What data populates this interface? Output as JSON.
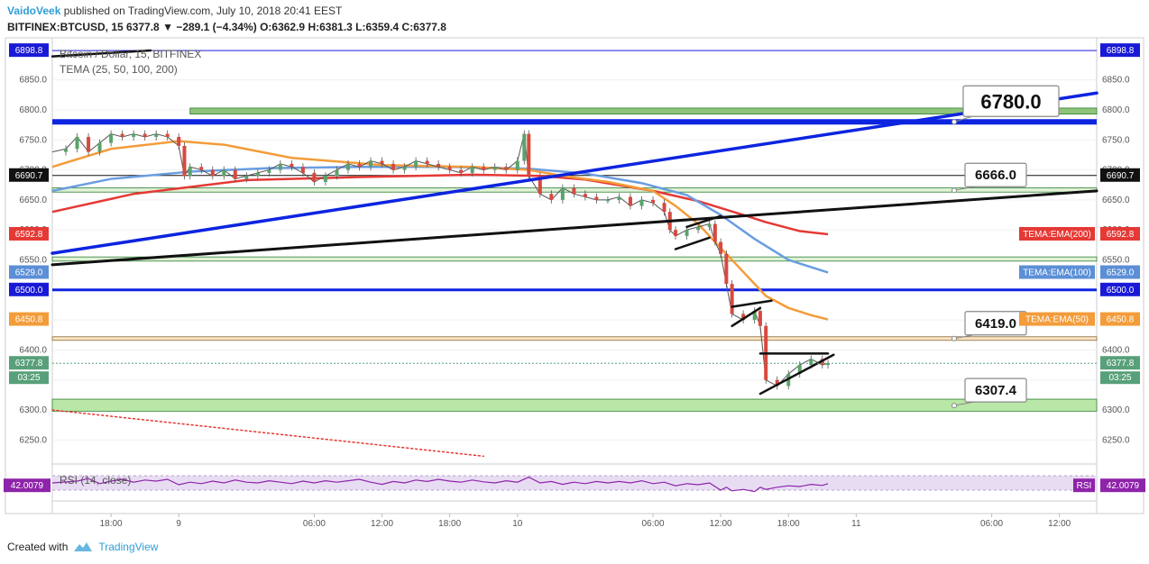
{
  "header": {
    "author": "VaidoVeek",
    "published": "published on TradingView.com, July 10, 2018 20:41 EEST",
    "symbol": "BITFINEX:BTCUSD, 15",
    "last": "6377.8",
    "change_arrow": "▼",
    "change": "−289.1 (−4.34%)",
    "o_label": "O:",
    "o": "6362.9",
    "h_label": "H:",
    "h": "6381.3",
    "l_label": "L:",
    "l": "6359.4",
    "c_label": "C:",
    "c": "6377.8"
  },
  "footer": {
    "created_with": "Created with",
    "brand": "TradingView"
  },
  "chart_data": {
    "type": "line",
    "title": "Bitcoin / Dollar, 15, BITFINEX",
    "indicator_label": "TEMA (25, 50, 100, 200)",
    "rsi_label": "RSI (14, close)",
    "rsi_value": "42.0079",
    "rsi_badge": "RSI",
    "ylim": [
      6210,
      6920
    ],
    "y_ticks": [
      "6850.0",
      "6800.0",
      "6750.0",
      "6700.0",
      "6650.0",
      "6600.0",
      "6550.0",
      "6500.0",
      "6450.0",
      "6400.0",
      "6350.0",
      "6300.0",
      "6250.0"
    ],
    "x_ticks": [
      {
        "label": "18:00",
        "t": 8
      },
      {
        "label": "9",
        "t": 14
      },
      {
        "label": "06:00",
        "t": 26
      },
      {
        "label": "12:00",
        "t": 32
      },
      {
        "label": "18:00",
        "t": 38
      },
      {
        "label": "10",
        "t": 44
      },
      {
        "label": "06:00",
        "t": 56
      },
      {
        "label": "12:00",
        "t": 62
      },
      {
        "label": "18:00",
        "t": 68
      },
      {
        "label": "11",
        "t": 74
      },
      {
        "label": "06:00",
        "t": 86
      },
      {
        "label": "12:00",
        "t": 92
      }
    ],
    "t_range": [
      2.8,
      95.3
    ],
    "price_labels": {
      "left": [
        {
          "value": 6898.8,
          "text": "6898.8",
          "color": "#1a1ad6"
        },
        {
          "value": 6690.7,
          "text": "6690.7",
          "color": "#111111"
        },
        {
          "value": 6592.8,
          "text": "6592.8",
          "color": "#e53935"
        },
        {
          "value": 6529.0,
          "text": "6529.0",
          "color": "#5b8fd6"
        },
        {
          "value": 6500.0,
          "text": "6500.0",
          "color": "#1a1ad6"
        },
        {
          "value": 6450.8,
          "text": "6450.8",
          "color": "#f39c3a"
        },
        {
          "value": 6377.8,
          "text": "6377.8",
          "color": "#58a07a"
        }
      ],
      "timer": "03:25",
      "ema_badges": [
        {
          "value": 6592.8,
          "text": "TEMA:EMA(200)",
          "color": "#e53935"
        },
        {
          "value": 6529.0,
          "text": "TEMA:EMA(100)",
          "color": "#5b8fd6"
        },
        {
          "value": 6450.8,
          "text": "TEMA:EMA(50)",
          "color": "#f39c3a"
        }
      ]
    },
    "levels": [
      {
        "name": "level-6898",
        "value": 6898.8,
        "color": "#1a1ad6",
        "kind": "thin"
      },
      {
        "name": "level-6780",
        "value": 6780.0,
        "color": "#0d24e0",
        "kind": "thick"
      },
      {
        "name": "level-6690",
        "value": 6690.7,
        "color": "#111111",
        "kind": "thin"
      },
      {
        "name": "level-6500",
        "value": 6500.0,
        "color": "#0d24e0",
        "kind": "medium"
      }
    ],
    "zones": [
      {
        "name": "zone-6800",
        "from": 6793,
        "to": 6803,
        "t0": 15.0,
        "fill": "#8fc47a",
        "stroke": "#2e7d32"
      },
      {
        "name": "zone-6666",
        "from": 6663,
        "to": 6670,
        "t0": 2.8,
        "fill": "#dff2d6",
        "stroke": "#2e7d32"
      },
      {
        "name": "zone-6550",
        "from": 6548,
        "to": 6555,
        "t0": 2.8,
        "fill": "#dff2d6",
        "stroke": "#2e7d32"
      },
      {
        "name": "zone-6419",
        "from": 6416,
        "to": 6422,
        "t0": 2.8,
        "fill": "#fbe3c4",
        "stroke": "#8a6d3b"
      },
      {
        "name": "zone-6307",
        "from": 6298,
        "to": 6318,
        "t0": 2.8,
        "fill": "#b9e7a7",
        "stroke": "#2e7d32"
      }
    ],
    "callouts": [
      {
        "text": "6780.0",
        "value": 6780,
        "size": "big"
      },
      {
        "text": "6666.0",
        "value": 6666,
        "size": "small"
      },
      {
        "text": "6419.0",
        "value": 6419,
        "size": "small"
      },
      {
        "text": "6307.4",
        "value": 6307.4,
        "size": "small"
      }
    ],
    "trendlines": [
      {
        "name": "blue-trendline",
        "color": "#0d24e0",
        "width": 3.5,
        "p1": [
          2.8,
          6561
        ],
        "p2": [
          95.3,
          6828
        ]
      },
      {
        "name": "black-trendline",
        "color": "#111111",
        "width": 3,
        "p1": [
          2.8,
          6542
        ],
        "p2": [
          95.3,
          6665
        ]
      },
      {
        "name": "black-trendline-top",
        "color": "#111111",
        "width": 2.5,
        "p1": [
          2.8,
          6889
        ],
        "p2": [
          11.5,
          6899
        ]
      },
      {
        "name": "red-dotted-trendline",
        "color": "#e53935",
        "width": 1.5,
        "dash": "2,3",
        "p1": [
          2.8,
          6300
        ],
        "p2": [
          41.0,
          6223
        ]
      },
      {
        "name": "wedge-1-lower",
        "color": "#111111",
        "width": 2.5,
        "p1": [
          58.0,
          6568
        ],
        "p2": [
          61.0,
          6587
        ]
      },
      {
        "name": "wedge-1-upper",
        "color": "#111111",
        "width": 2.5,
        "p1": [
          59.0,
          6605
        ],
        "p2": [
          62.0,
          6623
        ]
      },
      {
        "name": "wedge-2-lower",
        "color": "#111111",
        "width": 2.5,
        "p1": [
          63.0,
          6440
        ],
        "p2": [
          65.5,
          6470
        ]
      },
      {
        "name": "wedge-2-upper",
        "color": "#111111",
        "width": 2.5,
        "p1": [
          63.0,
          6472
        ],
        "p2": [
          66.5,
          6482
        ]
      },
      {
        "name": "triangle-top",
        "color": "#111111",
        "width": 2.5,
        "p1": [
          65.5,
          6394
        ],
        "p2": [
          71.5,
          6394
        ]
      },
      {
        "name": "triangle-bottom",
        "color": "#111111",
        "width": 2.5,
        "p1": [
          65.5,
          6327
        ],
        "p2": [
          72.0,
          6392
        ]
      }
    ],
    "series": [
      {
        "name": "TEMA:EMA(200)",
        "color": "#e53935",
        "x": [
          2.8,
          10,
          20,
          30,
          40,
          46,
          50,
          56,
          60,
          64,
          66,
          69,
          71.5
        ],
        "y": [
          6630,
          6660,
          6683,
          6688,
          6692,
          6690,
          6684,
          6665,
          6648,
          6625,
          6613,
          6598,
          6592.8
        ]
      },
      {
        "name": "TEMA:EMA(100)",
        "color": "#6a9de0",
        "x": [
          2.8,
          8,
          15,
          22,
          30,
          38,
          45,
          50,
          55,
          59,
          62,
          65,
          68,
          71.5
        ],
        "y": [
          6665,
          6685,
          6697,
          6703,
          6705,
          6705,
          6702,
          6694,
          6678,
          6658,
          6625,
          6585,
          6550,
          6529
        ]
      },
      {
        "name": "TEMA:EMA(50)",
        "color": "#f39c3a",
        "x": [
          2.8,
          8,
          14,
          18,
          24,
          32,
          40,
          45,
          48,
          52,
          56,
          58,
          60,
          62,
          64,
          66,
          68,
          70,
          71.5
        ],
        "y": [
          6705,
          6735,
          6748,
          6742,
          6720,
          6708,
          6705,
          6700,
          6690,
          6680,
          6665,
          6640,
          6610,
          6570,
          6530,
          6490,
          6470,
          6458,
          6450.8
        ]
      }
    ],
    "rsi": {
      "value_range": [
        0,
        100
      ],
      "points": [
        [
          2.8,
          50
        ],
        [
          5,
          55
        ],
        [
          6,
          62
        ],
        [
          7,
          48
        ],
        [
          8,
          55
        ],
        [
          9,
          60
        ],
        [
          10,
          52
        ],
        [
          11,
          58
        ],
        [
          12,
          55
        ],
        [
          13,
          60
        ],
        [
          14,
          45
        ],
        [
          15,
          52
        ],
        [
          16,
          48
        ],
        [
          17,
          55
        ],
        [
          18,
          50
        ],
        [
          19,
          58
        ],
        [
          20,
          52
        ],
        [
          21,
          50
        ],
        [
          22,
          56
        ],
        [
          23,
          52
        ],
        [
          24,
          48
        ],
        [
          25,
          55
        ],
        [
          26,
          50
        ],
        [
          27,
          56
        ],
        [
          28,
          52
        ],
        [
          30,
          60
        ],
        [
          31,
          52
        ],
        [
          32,
          46
        ],
        [
          33,
          54
        ],
        [
          34,
          50
        ],
        [
          35,
          58
        ],
        [
          36,
          54
        ],
        [
          37,
          60
        ],
        [
          38,
          55
        ],
        [
          39,
          52
        ],
        [
          40,
          58
        ],
        [
          41,
          53
        ],
        [
          42,
          50
        ],
        [
          43,
          56
        ],
        [
          44,
          52
        ],
        [
          45,
          66
        ],
        [
          46,
          50
        ],
        [
          47,
          54
        ],
        [
          48,
          46
        ],
        [
          49,
          52
        ],
        [
          50,
          48
        ],
        [
          51,
          54
        ],
        [
          52,
          50
        ],
        [
          53,
          54
        ],
        [
          54,
          50
        ],
        [
          55,
          56
        ],
        [
          56,
          48
        ],
        [
          57,
          52
        ],
        [
          58,
          42
        ],
        [
          59,
          48
        ],
        [
          60,
          45
        ],
        [
          61,
          50
        ],
        [
          62,
          30
        ],
        [
          62.5,
          38
        ],
        [
          63,
          28
        ],
        [
          64,
          32
        ],
        [
          65,
          26
        ],
        [
          65.5,
          38
        ],
        [
          66,
          32
        ],
        [
          67,
          38
        ],
        [
          68,
          42
        ],
        [
          69,
          40
        ],
        [
          70,
          46
        ],
        [
          71,
          43
        ],
        [
          71.5,
          48
        ]
      ]
    },
    "candles": {
      "note": "summary OHLC path sampled from chart",
      "points": [
        [
          2.8,
          6730
        ],
        [
          4,
          6735
        ],
        [
          5,
          6755
        ],
        [
          6,
          6730
        ],
        [
          7,
          6745
        ],
        [
          8,
          6760
        ],
        [
          9,
          6755
        ],
        [
          10,
          6760
        ],
        [
          11,
          6755
        ],
        [
          12,
          6760
        ],
        [
          13,
          6755
        ],
        [
          14,
          6740
        ],
        [
          14.5,
          6690
        ],
        [
          15,
          6705
        ],
        [
          16,
          6700
        ],
        [
          17,
          6690
        ],
        [
          18,
          6700
        ],
        [
          19,
          6685
        ],
        [
          20,
          6690
        ],
        [
          21,
          6695
        ],
        [
          22,
          6700
        ],
        [
          23,
          6710
        ],
        [
          24,
          6705
        ],
        [
          25,
          6695
        ],
        [
          26,
          6680
        ],
        [
          27,
          6690
        ],
        [
          28,
          6700
        ],
        [
          29,
          6710
        ],
        [
          30,
          6705
        ],
        [
          31,
          6715
        ],
        [
          32,
          6710
        ],
        [
          33,
          6700
        ],
        [
          34,
          6705
        ],
        [
          35,
          6715
        ],
        [
          36,
          6710
        ],
        [
          37,
          6705
        ],
        [
          38,
          6700
        ],
        [
          39,
          6695
        ],
        [
          40,
          6705
        ],
        [
          41,
          6700
        ],
        [
          42,
          6705
        ],
        [
          43,
          6700
        ],
        [
          44,
          6715
        ],
        [
          44.6,
          6760
        ],
        [
          45,
          6690
        ],
        [
          46,
          6660
        ],
        [
          47,
          6650
        ],
        [
          48,
          6670
        ],
        [
          49,
          6660
        ],
        [
          50,
          6655
        ],
        [
          51,
          6650
        ],
        [
          52,
          6650
        ],
        [
          53,
          6655
        ],
        [
          54,
          6640
        ],
        [
          55,
          6650
        ],
        [
          56,
          6645
        ],
        [
          57,
          6630
        ],
        [
          57.5,
          6600
        ],
        [
          58,
          6590
        ],
        [
          59,
          6600
        ],
        [
          60,
          6605
        ],
        [
          61,
          6610
        ],
        [
          61.5,
          6580
        ],
        [
          62,
          6560
        ],
        [
          62.5,
          6510
        ],
        [
          63,
          6460
        ],
        [
          64,
          6450
        ],
        [
          65,
          6465
        ],
        [
          65.5,
          6440
        ],
        [
          66,
          6350
        ],
        [
          67,
          6340
        ],
        [
          68,
          6360
        ],
        [
          69,
          6375
        ],
        [
          70,
          6385
        ],
        [
          71,
          6375
        ],
        [
          71.5,
          6377.8
        ]
      ]
    }
  }
}
